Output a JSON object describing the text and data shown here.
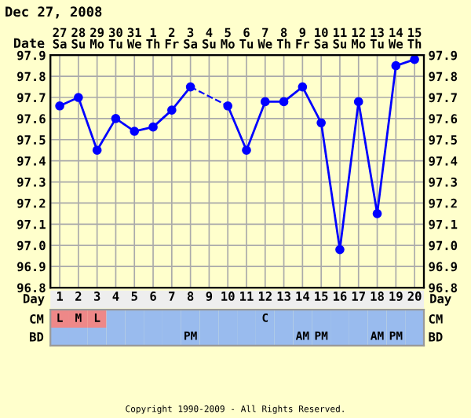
{
  "chart_data": [
    {
      "type": "line",
      "title": "Dec 27, 2008",
      "xlabel": "Date",
      "categories": [
        "27\nSa",
        "28\nSu",
        "29\nMo",
        "30\nTu",
        "31\nWe",
        "1\nTh",
        "2\nFr",
        "3\nSa",
        "4\nSu",
        "5\nMo",
        "6\nTu",
        "7\nWe",
        "8\nTh",
        "9\nFr",
        "10\nSa",
        "11\nSu",
        "12\nMo",
        "13\nTu",
        "14\nWe",
        "15\nTh"
      ],
      "series": [
        {
          "color": "#0000ff",
          "values": [
            97.66,
            97.7,
            97.45,
            97.6,
            97.54,
            97.56,
            97.64,
            97.75,
            null,
            97.66,
            97.45,
            97.68,
            97.68,
            97.75,
            97.58,
            96.98,
            97.68,
            97.15,
            97.85,
            97.88
          ]
        }
      ],
      "ylim": [
        96.8,
        97.9
      ],
      "yticks": [
        {
          "value": 96.8,
          "label": "96.8"
        },
        {
          "value": 96.9,
          "label": "96.9"
        },
        {
          "value": 97.0,
          "label": "97.0"
        },
        {
          "value": 97.1,
          "label": "97.1"
        },
        {
          "value": 97.2,
          "label": "97.2"
        },
        {
          "value": 97.3,
          "label": "97.3"
        },
        {
          "value": 97.4,
          "label": "97.4"
        },
        {
          "value": 97.5,
          "label": "97.5"
        },
        {
          "value": 97.6,
          "label": "97.6"
        },
        {
          "value": 97.7,
          "label": "97.7"
        },
        {
          "value": 97.8,
          "label": "97.8"
        },
        {
          "value": 97.9,
          "label": "97.9"
        }
      ],
      "y2lim": [
        96.8,
        97.9
      ],
      "y2ticks": [
        {
          "value": 96.8,
          "label": "96.8"
        },
        {
          "value": 96.9,
          "label": "96.9"
        },
        {
          "value": 97.0,
          "label": "97.0"
        },
        {
          "value": 97.1,
          "label": "97.1"
        },
        {
          "value": 97.2,
          "label": "97.2"
        },
        {
          "value": 97.3,
          "label": "97.3"
        },
        {
          "value": 97.4,
          "label": "97.4"
        },
        {
          "value": 97.5,
          "label": "97.5"
        },
        {
          "value": 97.6,
          "label": "97.6"
        },
        {
          "value": 97.7,
          "label": "97.7"
        },
        {
          "value": 97.8,
          "label": "97.8"
        },
        {
          "value": 97.9,
          "label": "97.9"
        }
      ],
      "grid": true,
      "marker": "circle",
      "line_style": "solid",
      "legend": false
    },
    {
      "type": "heatmap",
      "xlabel": "Day",
      "cells": [
        [
          null,
          null,
          null,
          null,
          null,
          null,
          null,
          null,
          null,
          null,
          null,
          null,
          null,
          null,
          null,
          null,
          null,
          null,
          null,
          null
        ],
        [
          null,
          null,
          null,
          null,
          null,
          null,
          null,
          null,
          null,
          null,
          null,
          null,
          null,
          null,
          null,
          null,
          null,
          null,
          null,
          null
        ]
      ],
      "categories": [
        "1",
        "2",
        "3",
        "4",
        "5",
        "6",
        "7",
        "8",
        "9",
        "10",
        "11",
        "12",
        "13",
        "14",
        "15",
        "16",
        "17",
        "18",
        "19",
        "20"
      ],
      "y_categories": [
        "CM",
        "BD"
      ],
      "y2_categories": [
        "CM",
        "BD"
      ],
      "cell_labels": [
        [
          "L",
          "M",
          "L",
          null,
          null,
          null,
          null,
          null,
          null,
          null,
          null,
          "C",
          null,
          null,
          null,
          null,
          null,
          null,
          null,
          null
        ],
        [
          null,
          null,
          null,
          null,
          null,
          null,
          null,
          "PM",
          null,
          null,
          null,
          null,
          null,
          "AM",
          "PM",
          null,
          null,
          "AM",
          "PM",
          null
        ]
      ],
      "colors": [
        [
          "#ee8888",
          "#ee8888",
          "#ee8888",
          "#99bbee",
          "#99bbee",
          "#99bbee",
          "#99bbee",
          "#99bbee",
          "#99bbee",
          "#99bbee",
          "#99bbee",
          "#99bbee",
          "#99bbee",
          "#99bbee",
          "#99bbee",
          "#99bbee",
          "#99bbee",
          "#99bbee",
          "#99bbee",
          "#99bbee"
        ],
        [
          "#99bbee",
          "#99bbee",
          "#99bbee",
          "#99bbee",
          "#99bbee",
          "#99bbee",
          "#99bbee",
          "#99bbee",
          "#99bbee",
          "#99bbee",
          "#99bbee",
          "#99bbee",
          "#99bbee",
          "#99bbee",
          "#99bbee",
          "#99bbee",
          "#99bbee",
          "#99bbee",
          "#99bbee",
          "#99bbee"
        ]
      ],
      "annotations": [
        "Copyright 1990-2009 - All Rights Reserved."
      ]
    }
  ]
}
